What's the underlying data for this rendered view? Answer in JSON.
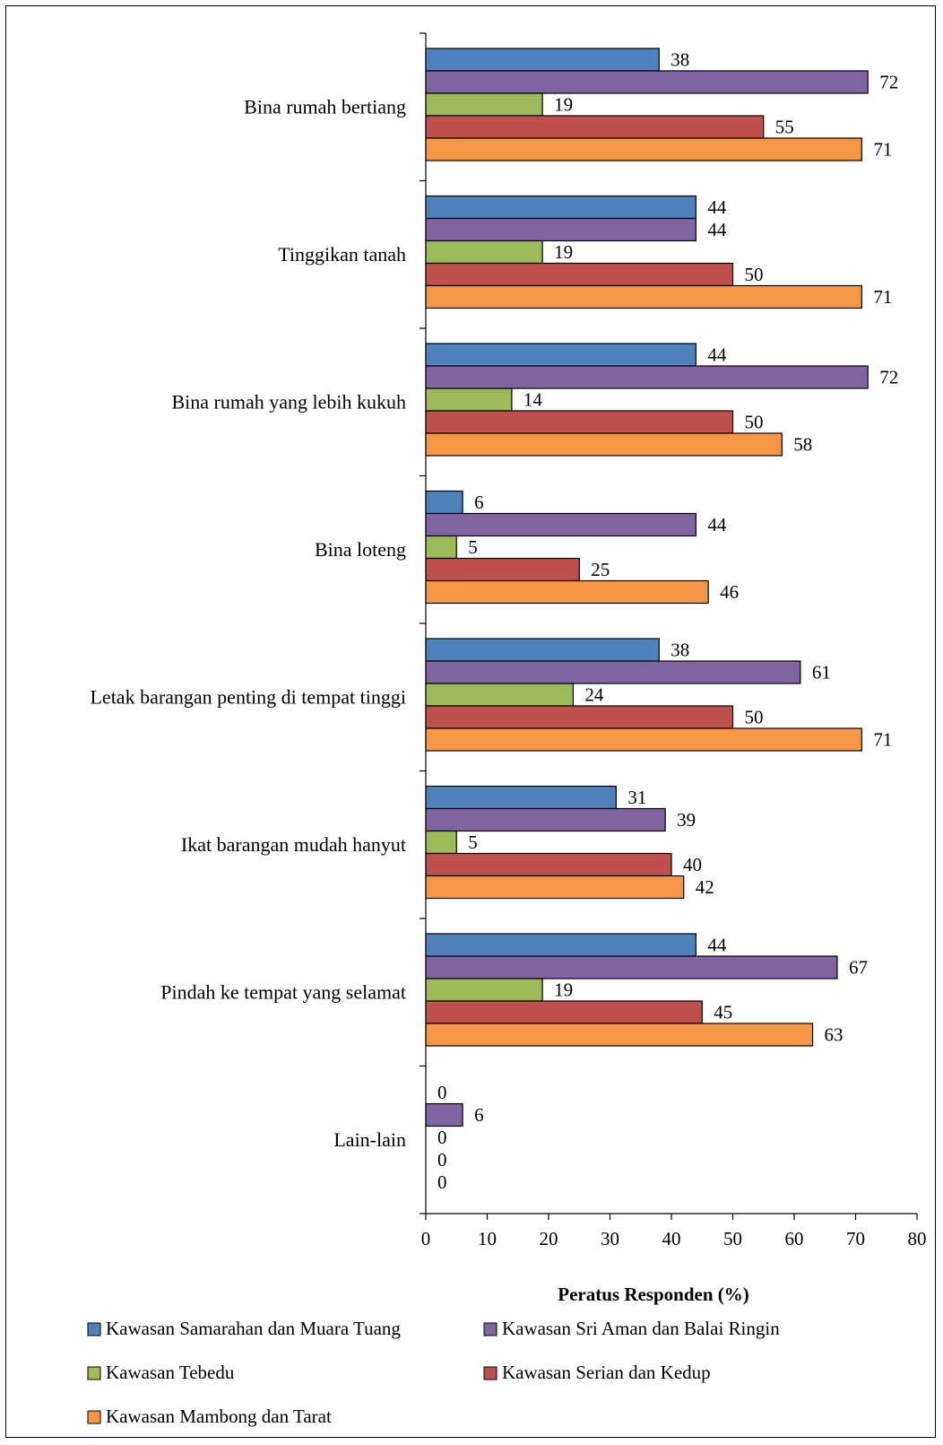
{
  "chart_data": {
    "type": "bar",
    "orientation": "horizontal",
    "categories": [
      "Bina rumah bertiang",
      "Tinggikan tanah",
      "Bina rumah yang lebih kukuh",
      "Bina loteng",
      "Letak barangan penting di tempat tinggi",
      "Ikat barangan mudah hanyut",
      "Pindah ke tempat yang selamat",
      "Lain-lain"
    ],
    "series": [
      {
        "name": "Kawasan Samarahan dan Muara Tuang",
        "color": "#4F81BD",
        "values": [
          38,
          44,
          44,
          6,
          38,
          31,
          44,
          0
        ]
      },
      {
        "name": "Kawasan Sri Aman dan Balai Ringin",
        "color": "#8064A2",
        "values": [
          72,
          44,
          72,
          44,
          61,
          39,
          67,
          6
        ]
      },
      {
        "name": "Kawasan Tebedu",
        "color": "#9BBB59",
        "values": [
          19,
          19,
          14,
          5,
          24,
          5,
          19,
          0
        ]
      },
      {
        "name": "Kawasan Serian dan Kedup",
        "color": "#C0504D",
        "values": [
          55,
          50,
          50,
          25,
          50,
          40,
          45,
          0
        ]
      },
      {
        "name": "Kawasan Mambong dan Tarat",
        "color": "#F79646",
        "values": [
          71,
          71,
          58,
          46,
          71,
          42,
          63,
          0
        ]
      }
    ],
    "xlabel": "Peratus Responden (%)",
    "ylabel": "",
    "xlim": [
      0,
      80
    ],
    "xticks": [
      0,
      10,
      20,
      30,
      40,
      50,
      60,
      70,
      80
    ],
    "grid": false,
    "legend_position": "bottom"
  }
}
